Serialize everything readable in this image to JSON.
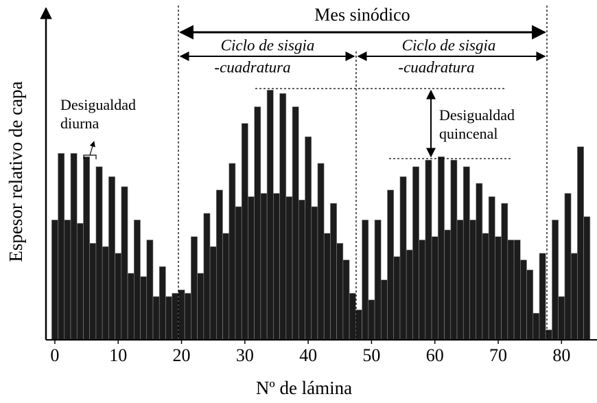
{
  "chart_data": {
    "type": "bar",
    "x_label": "Nº de lámina",
    "y_label": "Espesor relativo de capa",
    "color": "#1c1c1c",
    "values": [
      36,
      56,
      36,
      56,
      35,
      55,
      29,
      52,
      28,
      49,
      26,
      46,
      20,
      36,
      19,
      30,
      13,
      22,
      13,
      14,
      15,
      14,
      31,
      20,
      38,
      28,
      45,
      32,
      53,
      40,
      65,
      43,
      70,
      44,
      75,
      44,
      74,
      43,
      70,
      42,
      61,
      40,
      53,
      32,
      41,
      29,
      24,
      14,
      9,
      36,
      12,
      36,
      18,
      45,
      25,
      49,
      27,
      52,
      30,
      54,
      31,
      55,
      33,
      54,
      36,
      52,
      36,
      47,
      32,
      43,
      31,
      41,
      30,
      30,
      24,
      21,
      8,
      26,
      3,
      36,
      13,
      44,
      26,
      58,
      37
    ],
    "xlim": [
      -1.4,
      85.6
    ],
    "xticks": [
      0,
      10,
      20,
      30,
      40,
      50,
      60,
      70,
      80
    ],
    "ylim": [
      0,
      100
    ],
    "annotations": {
      "month": "Mes sinódico",
      "cycle1": [
        "Ciclo de sisgia",
        "-cuadratura"
      ],
      "cycle2": [
        "Ciclo de sisgia",
        "-cuadratura"
      ],
      "diurnal": [
        "Desigualdad",
        "diurna"
      ],
      "fortnight": [
        "Desigualdad",
        "quincenal"
      ]
    }
  }
}
